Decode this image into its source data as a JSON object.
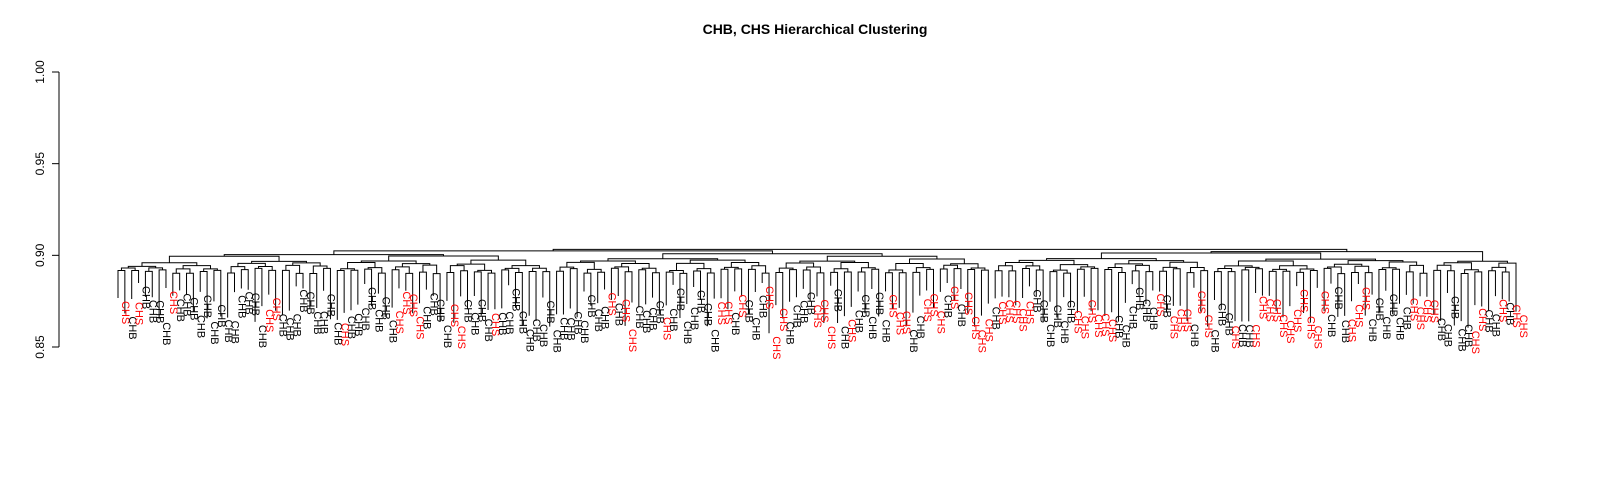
{
  "chart_data": {
    "type": "dendrogram",
    "title": "CHB, CHS Hierarchical Clustering",
    "xlabel": "",
    "ylabel": "",
    "ylim": [
      0.85,
      1.0
    ],
    "yticks": [
      "0.85",
      "0.90",
      "0.95",
      "1.00"
    ],
    "grid": false,
    "legend": "none",
    "colors": {
      "CHB": "#000000",
      "CHS": "#ff0000"
    },
    "leaf_count": 205,
    "trunk_height": 0.9065,
    "leaf_height_range": [
      0.861,
      0.893
    ],
    "leaves": [
      "CHS",
      "CHB",
      "CHS",
      "CHB",
      "CHB",
      "CHB",
      "CHB",
      "CHS",
      "CHB",
      "CHB",
      "CHB",
      "CHB",
      "CHB",
      "CHB",
      "CHB",
      "CHB",
      "CHB",
      "CHB",
      "CHB",
      "CHB",
      "CHB",
      "CHS",
      "CHS",
      "CHB",
      "CHB",
      "CHB",
      "CHB",
      "CHB",
      "CHB",
      "CHB",
      "CHB",
      "CHB",
      "CHS",
      "CHB",
      "CHB",
      "CHB",
      "CHB",
      "CHB",
      "CHB",
      "CHB",
      "CHS",
      "CHS",
      "CHS",
      "CHS",
      "CHB",
      "CHB",
      "CHB",
      "CHB",
      "CHS",
      "CHS",
      "CHB",
      "CHB",
      "CHB",
      "CHB",
      "CHS",
      "CHB",
      "CHB",
      "CHB",
      "CHB",
      "CHB",
      "CHB",
      "CHB",
      "CHB",
      "CHB",
      "CHB",
      "CHB",
      "CHB",
      "CHB",
      "CHB",
      "CHB",
      "CHB",
      "CHS",
      "CHB",
      "CHS",
      "CHS",
      "CHB",
      "CHB",
      "CHB",
      "CHB",
      "CHS",
      "CHB",
      "CHB",
      "CHB",
      "CHB",
      "CHB",
      "CHB",
      "CHB",
      "CHS",
      "CHS",
      "CHB",
      "CHS",
      "CHB",
      "CHB",
      "CHB",
      "CHS",
      "CHS",
      "CHS",
      "CHB",
      "CHB",
      "CHB",
      "CHB",
      "CHS",
      "CHS",
      "CHS",
      "CHB",
      "CHB",
      "CHS",
      "CHB",
      "CHB",
      "CHB",
      "CHB",
      "CHB",
      "CHS",
      "CHS",
      "CHS",
      "CHB",
      "CHB",
      "CHS",
      "CHS",
      "CHS",
      "CHB",
      "CHS",
      "CHB",
      "CHS",
      "CHS",
      "CHS",
      "CHS",
      "CHB",
      "CHS",
      "CHS",
      "CHS",
      "CHS",
      "CHS",
      "CHB",
      "CHB",
      "CHB",
      "CHB",
      "CHB",
      "CHB",
      "CHS",
      "CHS",
      "CHS",
      "CHS",
      "CHS",
      "CHS",
      "CHB",
      "CHB",
      "CHB",
      "CHB",
      "CHB",
      "CHB",
      "CHS",
      "CHB",
      "CHS",
      "CHS",
      "CHS",
      "CHB",
      "CHS",
      "CHS",
      "CHB",
      "CHB",
      "CHB",
      "CHS",
      "CHB",
      "CHB",
      "CHS",
      "CHS",
      "CHS",
      "CHS",
      "CHS",
      "CHS",
      "CHS",
      "CHS",
      "CHS",
      "CHS",
      "CHS",
      "CHB",
      "CHB",
      "CHB",
      "CHS",
      "CHS",
      "CHS",
      "CHB",
      "CHB",
      "CHB",
      "CHB",
      "CHB",
      "CHB",
      "CHS",
      "CHS",
      "CHS",
      "CHS",
      "CHB",
      "CHB",
      "CHB",
      "CHB",
      "CHB",
      "CHS",
      "CHS",
      "CHB",
      "CHB",
      "CHS",
      "CHB",
      "CHS",
      "CHS"
    ],
    "special_leaves": [
      {
        "index": 95,
        "height": 0.8575
      },
      {
        "index": 119,
        "height": 0.8715
      },
      {
        "index": 197,
        "height": 0.8605
      }
    ]
  }
}
